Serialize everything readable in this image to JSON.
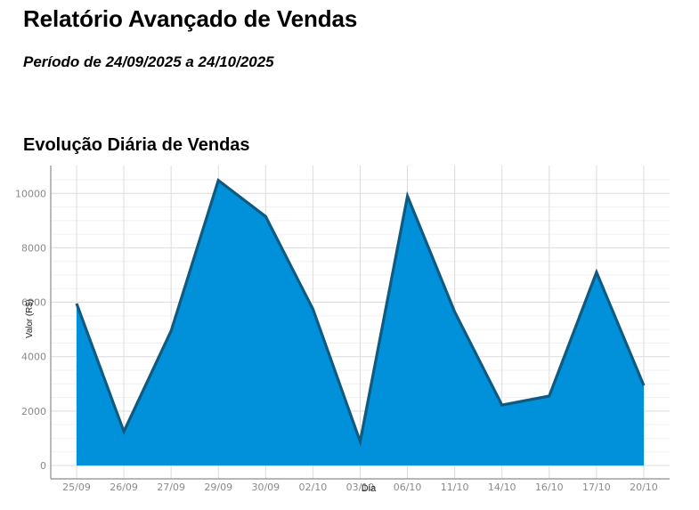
{
  "header": {
    "title": "Relatório Avançado de Vendas",
    "subtitle": "Período de 24/09/2025 a 24/10/2025"
  },
  "section": {
    "title": "Evolução Diária de Vendas"
  },
  "colors": {
    "fill": "#0091DA",
    "line": "#0E5A80",
    "grid_major": "#dcdcdc",
    "grid_minor": "#f0f0f0",
    "axis": "#8c8c8c",
    "tick_text": "#8a8a8a"
  },
  "chart_data": {
    "type": "area",
    "title": "Evolução Diária de Vendas",
    "xlabel": "Dia",
    "ylabel": "Valor (R$)",
    "categories": [
      "25/09",
      "26/09",
      "27/09",
      "29/09",
      "30/09",
      "02/10",
      "03/10",
      "06/10",
      "11/10",
      "14/10",
      "16/10",
      "17/10",
      "20/10"
    ],
    "values": [
      5950,
      1250,
      4950,
      10480,
      9150,
      5750,
      880,
      9900,
      5650,
      2220,
      2550,
      7100,
      2940
    ],
    "yticks": [
      0,
      2000,
      4000,
      6000,
      8000,
      10000
    ],
    "yticks_labels": [
      "0",
      "2000",
      "4000",
      "6000",
      "8000",
      "10000"
    ],
    "ylim": [
      -500,
      11000
    ],
    "grid": true,
    "minor_grid": true,
    "legend": "none"
  }
}
